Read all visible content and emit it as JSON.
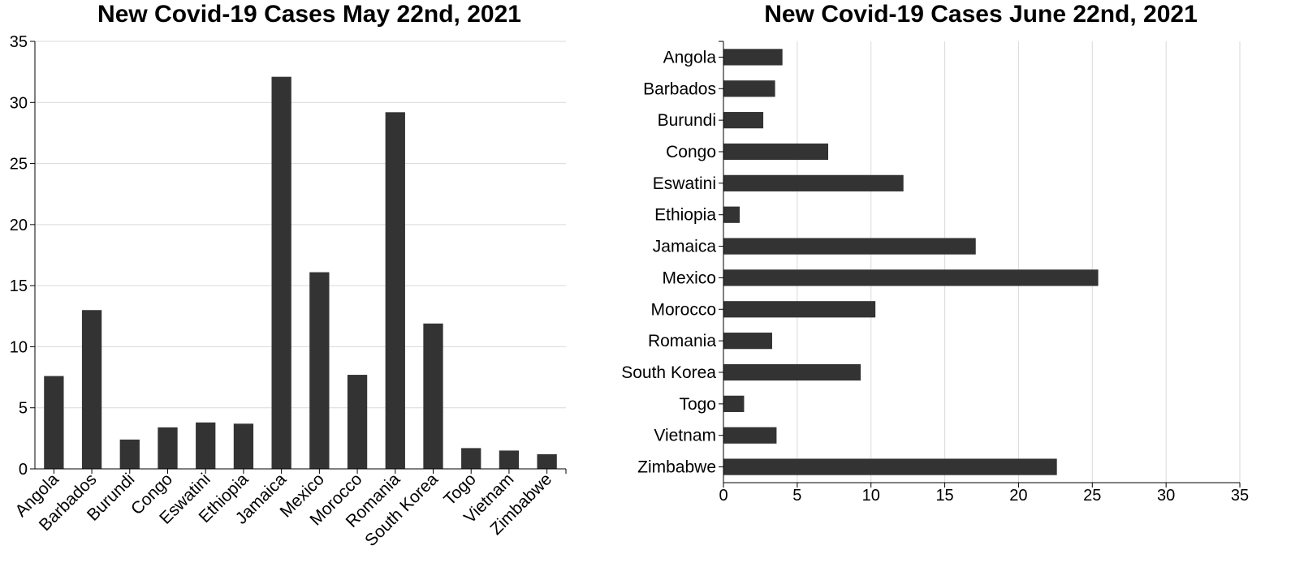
{
  "chart_data": [
    {
      "type": "bar",
      "orientation": "vertical",
      "title": "New Covid-19 Cases May 22nd, 2021",
      "xlabel": "",
      "ylabel": "",
      "categories": [
        "Angola",
        "Barbados",
        "Burundi",
        "Congo",
        "Eswatini",
        "Ethiopia",
        "Jamaica",
        "Mexico",
        "Morocco",
        "Romania",
        "South Korea",
        "Togo",
        "Vietnam",
        "Zimbabwe"
      ],
      "values": [
        7.6,
        13.0,
        2.4,
        3.4,
        3.8,
        3.7,
        32.1,
        16.1,
        7.7,
        29.2,
        11.9,
        1.7,
        1.5,
        1.2
      ],
      "ylim": [
        0,
        35
      ],
      "ticks": [
        "0",
        "5",
        "10",
        "15",
        "20",
        "25",
        "30",
        "35"
      ],
      "grid": true,
      "bar_color": "#333333"
    },
    {
      "type": "bar",
      "orientation": "horizontal",
      "title": "New Covid-19 Cases June 22nd, 2021",
      "xlabel": "",
      "ylabel": "",
      "categories": [
        "Angola",
        "Barbados",
        "Burundi",
        "Congo",
        "Eswatini",
        "Ethiopia",
        "Jamaica",
        "Mexico",
        "Morocco",
        "Romania",
        "South Korea",
        "Togo",
        "Vietnam",
        "Zimbabwe"
      ],
      "values": [
        4.0,
        3.5,
        2.7,
        7.1,
        12.2,
        1.1,
        17.1,
        25.4,
        10.3,
        3.3,
        9.3,
        1.4,
        3.6,
        22.6
      ],
      "xlim": [
        0,
        35
      ],
      "ticks": [
        "0",
        "5",
        "10",
        "15",
        "20",
        "25",
        "30",
        "35"
      ],
      "grid": true,
      "bar_color": "#333333"
    }
  ]
}
